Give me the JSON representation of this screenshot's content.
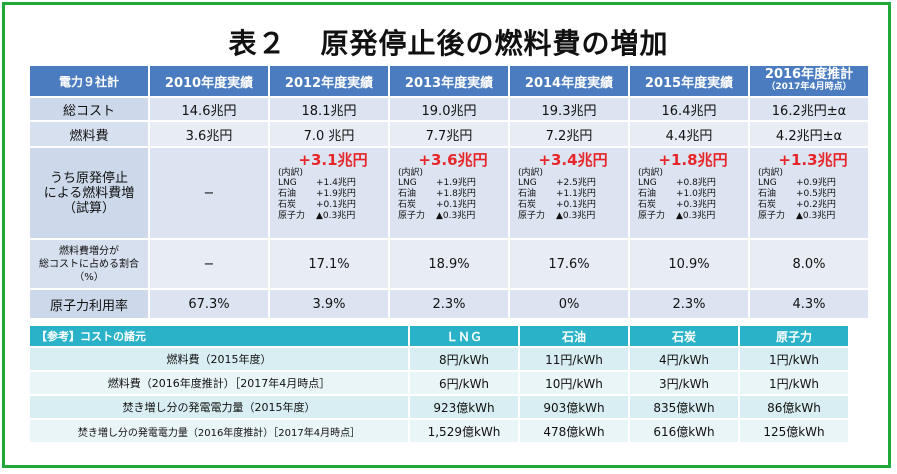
{
  "title": {
    "part1": "表２",
    "part2": "原発停止後の燃料費の増加"
  },
  "main_table": {
    "headers": {
      "c0": "電力９社計",
      "c1": "2010年度実績",
      "c2": "2012年度実績",
      "c3": "2013年度実績",
      "c4": "2014年度実績",
      "c5": "2015年度実績",
      "c6_line1": "2016年度推計",
      "c6_line2": "（2017年4月時点）"
    },
    "rows": {
      "total_cost": {
        "label": "総コスト",
        "values": [
          "14.6兆円",
          "18.1兆円",
          "19.0兆円",
          "19.3兆円",
          "16.4兆円",
          "16.2兆円±α"
        ]
      },
      "fuel_cost": {
        "label": "燃料費",
        "values": [
          "3.6兆円",
          "7.0 兆円",
          "7.7兆円",
          "7.2兆円",
          "4.4兆円",
          "4.2兆円±α"
        ]
      },
      "increase": {
        "label_lines": [
          "うち原発停止",
          "による燃料費増",
          "（試算）"
        ],
        "first_value": "−",
        "breakdown_label": "(内訳)",
        "keys": [
          "LNG",
          "石油",
          "石炭",
          "原子力"
        ],
        "columns": [
          {
            "total": "+3.1兆円",
            "items": [
              "+1.4兆円",
              "+1.9兆円",
              "+0.1兆円",
              "▲0.3兆円"
            ]
          },
          {
            "total": "+3.6兆円",
            "items": [
              "+1.9兆円",
              "+1.8兆円",
              "+0.1兆円",
              "▲0.3兆円"
            ]
          },
          {
            "total": "+3.4兆円",
            "items": [
              "+2.5兆円",
              "+1.1兆円",
              "+0.1兆円",
              "▲0.3兆円"
            ]
          },
          {
            "total": "+1.8兆円",
            "items": [
              "+0.8兆円",
              "+1.0兆円",
              "+0.3兆円",
              "▲0.3兆円"
            ]
          },
          {
            "total": "+1.3兆円",
            "items": [
              "+0.9兆円",
              "+0.5兆円",
              "+0.2兆円",
              "▲0.3兆円"
            ]
          }
        ]
      },
      "share": {
        "label_lines": [
          "燃料費増分が",
          "総コストに占める割合",
          "（%）"
        ],
        "values": [
          "−",
          "17.1%",
          "18.9%",
          "17.6%",
          "10.9%",
          "8.0%"
        ]
      },
      "nuclear_util": {
        "label": "原子力利用率",
        "values": [
          "67.3%",
          "3.9%",
          "2.3%",
          "0%",
          "2.3%",
          "4.3%"
        ]
      }
    }
  },
  "ref_table": {
    "header": {
      "label": "【参考】コストの諸元",
      "cols": [
        "ＬＮＧ",
        "石油",
        "石炭",
        "原子力"
      ]
    },
    "rows": [
      {
        "label": "燃料費（2015年度）",
        "values": [
          "8円/kWh",
          "11円/kWh",
          "4円/kWh",
          "1円/kWh"
        ]
      },
      {
        "label": "燃料費（2016年度推計）［2017年4月時点］",
        "values": [
          "6円/kWh",
          "10円/kWh",
          "3円/kWh",
          "1円/kWh"
        ]
      },
      {
        "label": "焚き増し分の発電電力量（2015年度）",
        "values": [
          "923億kWh",
          "903億kWh",
          "835億kWh",
          "86億kWh"
        ]
      },
      {
        "label": "焚き増し分の発電電力量（2016年度推計）［2017年4月時点］",
        "values": [
          "1,529億kWh",
          "478億kWh",
          "616億kWh",
          "125億kWh"
        ]
      }
    ]
  },
  "colors": {
    "border_green": "#21a83b",
    "header_blue": "#4a7cbf",
    "ref_header_teal": "#2ab3c8",
    "increase_red": "#e8262a"
  }
}
